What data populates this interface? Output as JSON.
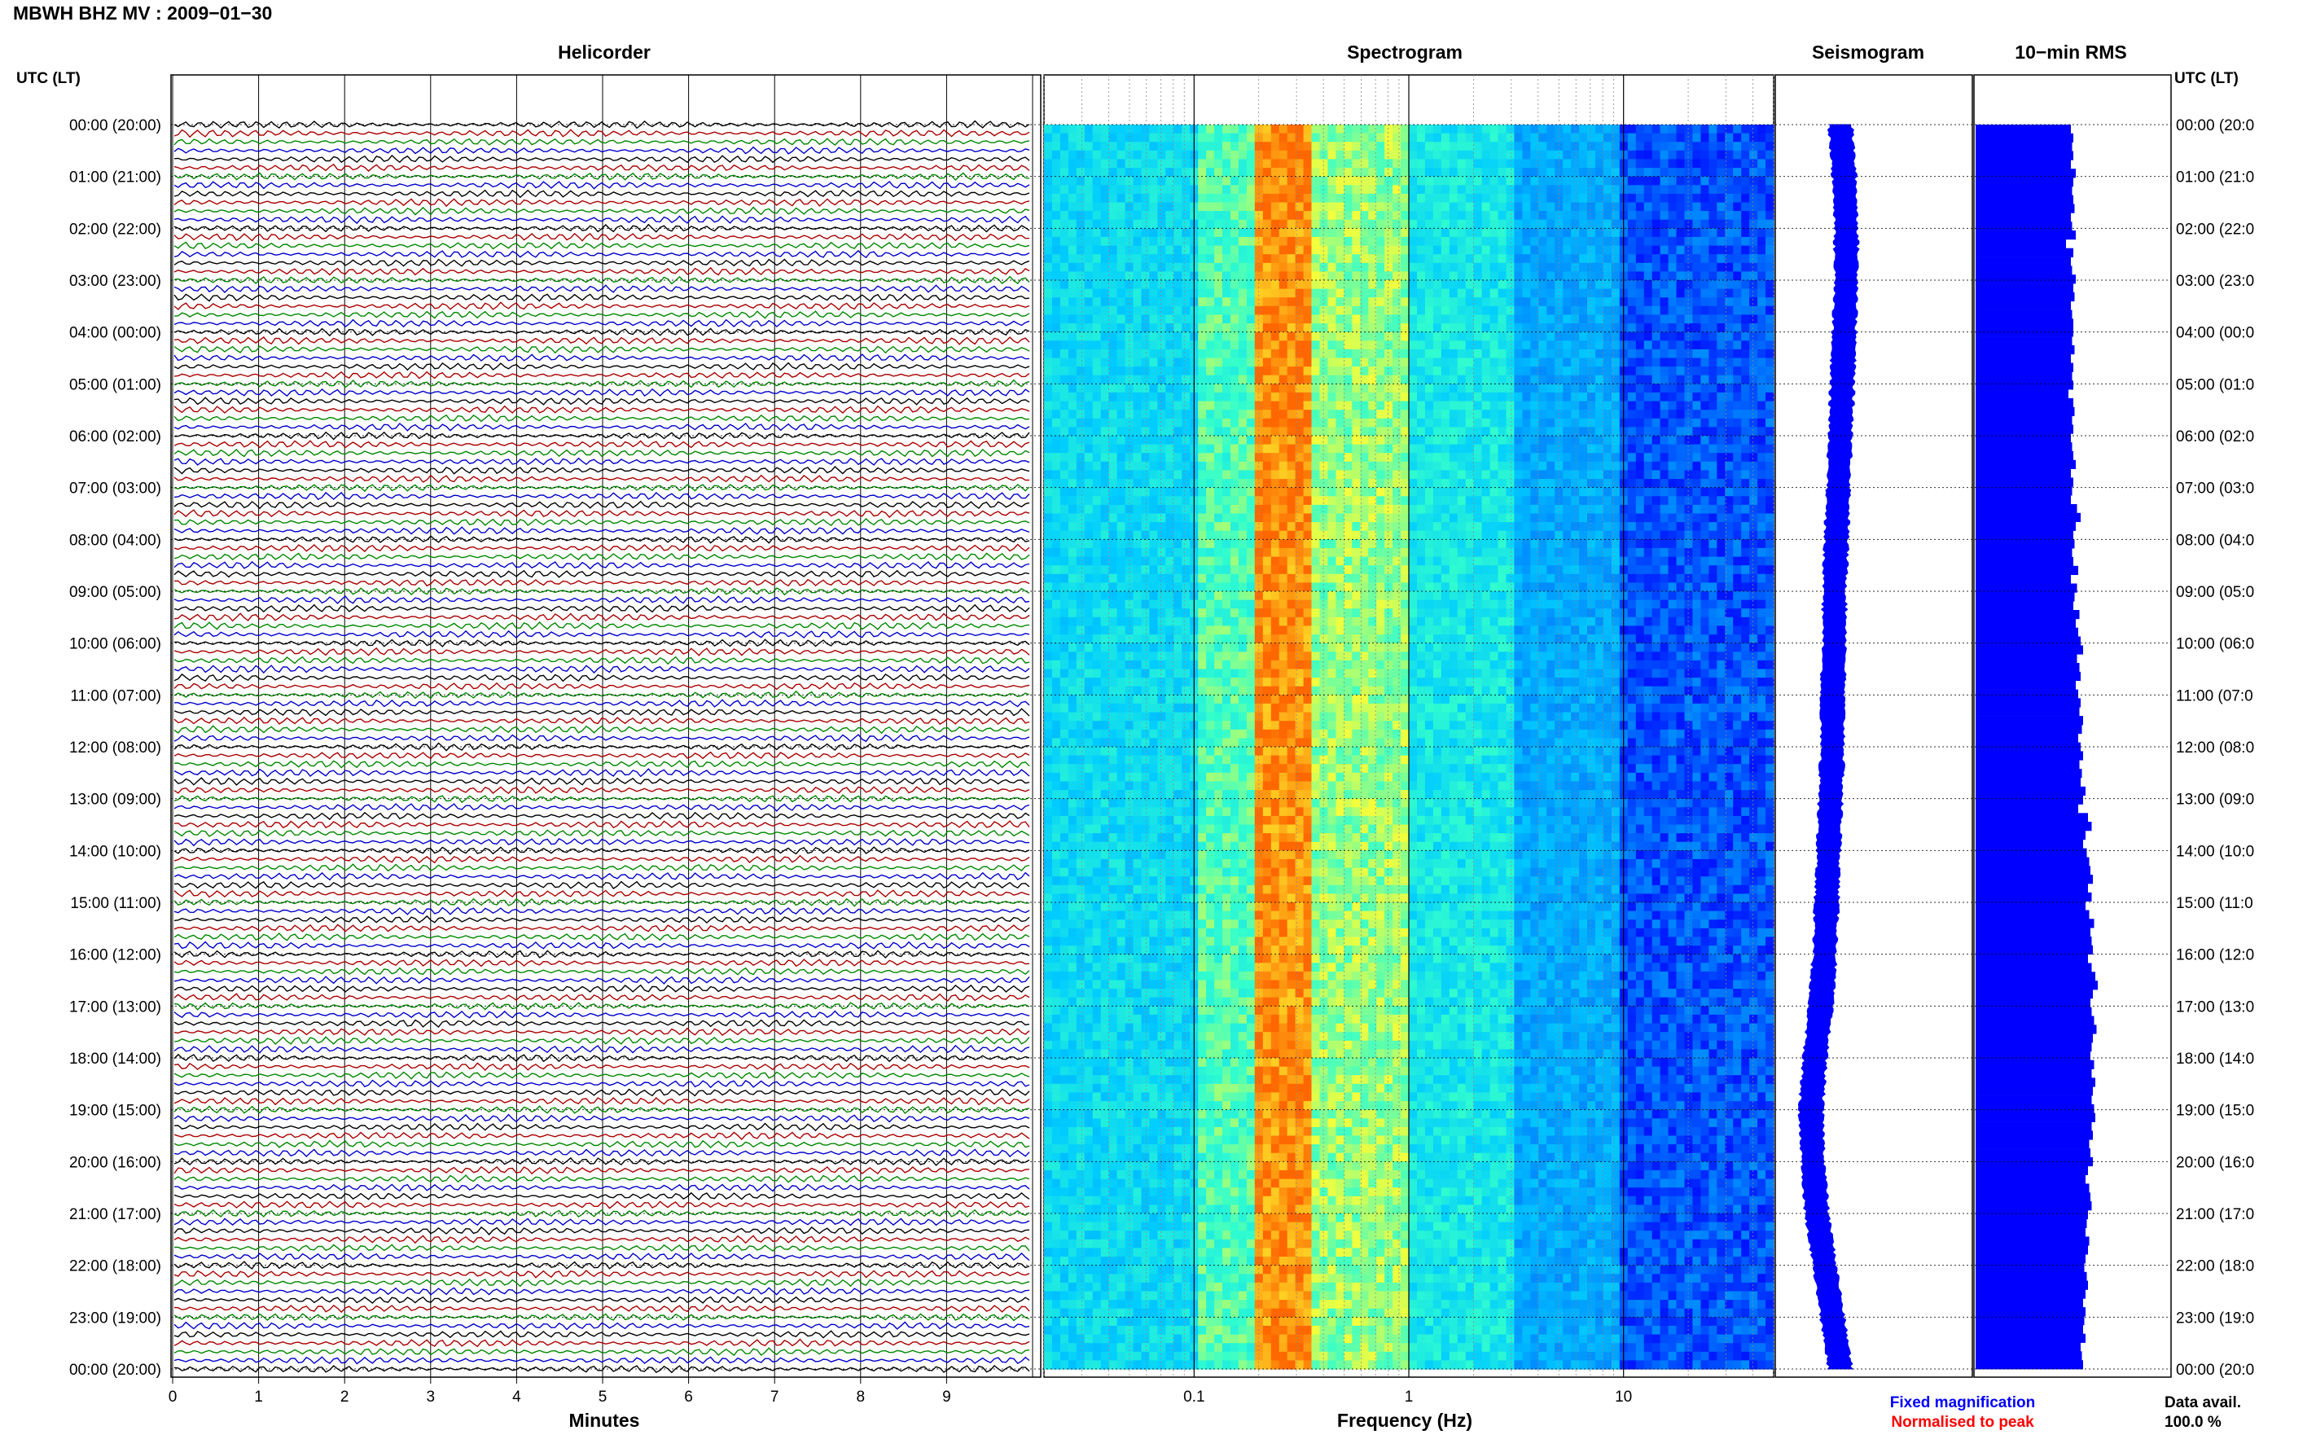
{
  "header": {
    "title": "MBWH BHZ MV : 2009−01−30",
    "time_axis_label_left": "UTC (LT)",
    "time_axis_label_right": "UTC (LT)"
  },
  "panels": {
    "helicorder": "Helicorder",
    "spectrogram": "Spectrogram",
    "seismogram": "Seismogram",
    "rms": "10−min RMS"
  },
  "axes": {
    "helicorder_xlabel": "Minutes",
    "spectrogram_xlabel": "Frequency (Hz)"
  },
  "legend": {
    "fixed": "Fixed magnification",
    "normalised": "Normalised to peak",
    "fixed_color": "#0000ff",
    "normalised_color": "#ff0000"
  },
  "data_availability": {
    "label": "Data avail.",
    "value": "100.0 %"
  },
  "chart_data": [
    {
      "type": "line",
      "title": "Helicorder",
      "xlabel": "Minutes",
      "x_ticks": [
        "0",
        "1",
        "2",
        "3",
        "4",
        "5",
        "6",
        "7",
        "8",
        "9"
      ],
      "xlim": [
        0,
        10
      ],
      "y_ticks_left": [
        "00:00 (20:00)",
        "01:00 (21:00)",
        "02:00 (22:00)",
        "03:00 (23:00)",
        "04:00 (00:00)",
        "05:00 (01:00)",
        "06:00 (02:00)",
        "07:00 (03:00)",
        "08:00 (04:00)",
        "09:00 (05:00)",
        "10:00 (06:00)",
        "11:00 (07:00)",
        "12:00 (08:00)",
        "13:00 (09:00)",
        "14:00 (10:00)",
        "15:00 (11:00)",
        "16:00 (12:00)",
        "17:00 (13:00)",
        "18:00 (14:00)",
        "19:00 (15:00)",
        "20:00 (16:00)",
        "21:00 (17:00)",
        "22:00 (18:00)",
        "23:00 (19:00)",
        "00:00 (20:00)"
      ],
      "y_ticks_right": [
        "00:00 (20:0",
        "01:00 (21:0",
        "02:00 (22:0",
        "03:00 (23:0",
        "04:00 (00:0",
        "05:00 (01:0",
        "06:00 (02:0",
        "07:00 (03:0",
        "08:00 (04:0",
        "09:00 (05:0",
        "10:00 (06:0",
        "11:00 (07:0",
        "12:00 (08:0",
        "13:00 (09:0",
        "14:00 (10:0",
        "15:00 (11:0",
        "16:00 (12:0",
        "17:00 (13:0",
        "18:00 (14:0",
        "19:00 (15:0",
        "20:00 (16:0",
        "21:00 (17:0",
        "22:00 (18:0",
        "23:00 (19:0",
        "00:00 (20:0"
      ],
      "rows_per_hour": 6,
      "trace_colors": [
        "#000000",
        "#aa0000",
        "#008800",
        "#0000cc"
      ]
    },
    {
      "type": "heatmap",
      "title": "Spectrogram",
      "xlabel": "Frequency (Hz)",
      "x_scale": "log",
      "xlim": [
        0.02,
        50
      ],
      "x_ticks": [
        "0.1",
        "1",
        "10"
      ],
      "band_peak_hz": 0.22,
      "colormap": [
        "#0000ff",
        "#0088ff",
        "#00ccff",
        "#33ffcc",
        "#ffff33",
        "#ff6600"
      ],
      "relative_level_by_band": [
        {
          "f_min": 0.02,
          "f_max": 0.1,
          "level": 0.45
        },
        {
          "f_min": 0.1,
          "f_max": 0.2,
          "level": 0.62
        },
        {
          "f_min": 0.2,
          "f_max": 0.35,
          "level": 0.95
        },
        {
          "f_min": 0.35,
          "f_max": 1.0,
          "level": 0.7
        },
        {
          "f_min": 1.0,
          "f_max": 3.0,
          "level": 0.5
        },
        {
          "f_min": 3.0,
          "f_max": 10,
          "level": 0.3
        },
        {
          "f_min": 10,
          "f_max": 50,
          "level": 0.12
        }
      ]
    },
    {
      "type": "line",
      "title": "Seismogram",
      "color": "#0000ff",
      "description_values_hourly_offset": [
        0.0,
        0.02,
        0.03,
        0.03,
        0.02,
        0.01,
        0.0,
        -0.01,
        -0.02,
        -0.03,
        -0.03,
        -0.04,
        -0.04,
        -0.05,
        -0.06,
        -0.07,
        -0.08,
        -0.1,
        -0.13,
        -0.15,
        -0.14,
        -0.12,
        -0.08,
        -0.04,
        0.0
      ]
    },
    {
      "type": "bar",
      "title": "10−min RMS",
      "orientation": "horizontal",
      "color": "#0000ff",
      "values": [
        0.78,
        0.8,
        0.79,
        0.8,
        0.78,
        0.82,
        0.8,
        0.79,
        0.8,
        0.81,
        0.78,
        0.79,
        0.82,
        0.74,
        0.8,
        0.78,
        0.79,
        0.82,
        0.8,
        0.81,
        0.78,
        0.79,
        0.8,
        0.8,
        0.79,
        0.81,
        0.78,
        0.8,
        0.79,
        0.8,
        0.76,
        0.8,
        0.81,
        0.79,
        0.8,
        0.78,
        0.79,
        0.8,
        0.82,
        0.78,
        0.8,
        0.79,
        0.78,
        0.83,
        0.86,
        0.82,
        0.8,
        0.81,
        0.79,
        0.8,
        0.84,
        0.78,
        0.83,
        0.81,
        0.8,
        0.85,
        0.82,
        0.84,
        0.86,
        0.88,
        0.83,
        0.85,
        0.86,
        0.82,
        0.84,
        0.86,
        0.85,
        0.88,
        0.87,
        0.84,
        0.86,
        0.88,
        0.85,
        0.87,
        0.86,
        0.9,
        0.88,
        0.84,
        0.92,
        0.95,
        0.9,
        0.88,
        0.91,
        0.93,
        0.94,
        0.96,
        0.92,
        0.95,
        0.9,
        0.93,
        0.97,
        0.94,
        0.95,
        0.96,
        0.92,
        0.95,
        0.98,
        1.0,
        0.96,
        0.94,
        0.95,
        0.97,
        0.99,
        0.96,
        0.95,
        0.94,
        0.97,
        0.95,
        0.98,
        0.96,
        0.95,
        0.97,
        0.98,
        0.95,
        0.96,
        0.93,
        0.94,
        0.96,
        0.92,
        0.9,
        0.93,
        0.94,
        0.95,
        0.92,
        0.91,
        0.9,
        0.93,
        0.92,
        0.9,
        0.89,
        0.91,
        0.92,
        0.9,
        0.88,
        0.9,
        0.89,
        0.88,
        0.9,
        0.86,
        0.87,
        0.88
      ]
    }
  ]
}
